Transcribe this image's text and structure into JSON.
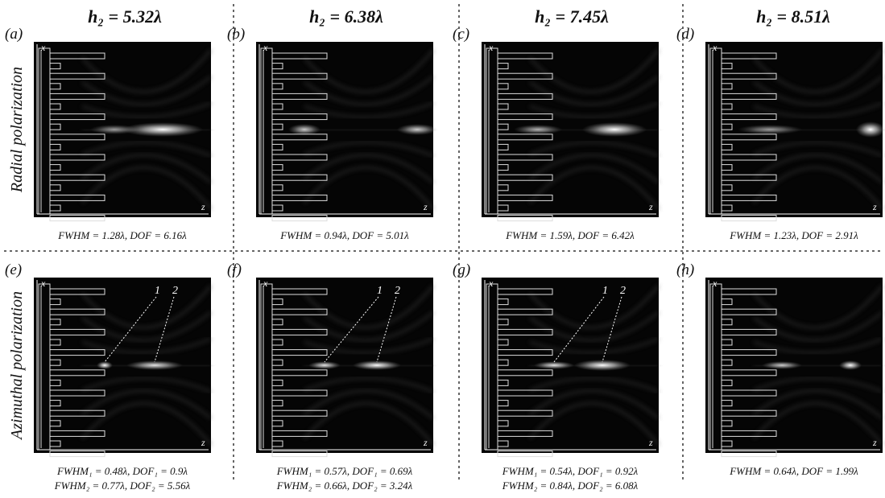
{
  "columns": [
    {
      "title": "h₂ = 5.32λ"
    },
    {
      "title": "h₂ = 6.38λ"
    },
    {
      "title": "h₂ = 7.45λ"
    },
    {
      "title": "h₂ = 8.51λ"
    }
  ],
  "rows": [
    {
      "label": "Radial polarization",
      "panels": [
        {
          "label": "(a)",
          "x_axis": "x",
          "z_axis": "z",
          "caption": [
            "FWHM = 1.28λ, DOF = 6.16λ"
          ]
        },
        {
          "label": "(b)",
          "x_axis": "x",
          "z_axis": "z",
          "caption": [
            "FWHM = 0.94λ, DOF = 5.01λ"
          ]
        },
        {
          "label": "(c)",
          "x_axis": "x",
          "z_axis": "z",
          "caption": [
            "FWHM = 1.59λ, DOF = 6.42λ"
          ]
        },
        {
          "label": "(d)",
          "x_axis": "x",
          "z_axis": "z",
          "caption": [
            "FWHM = 1.23λ, DOF = 2.91λ"
          ]
        }
      ]
    },
    {
      "label": "Azimuthal polarization",
      "panels": [
        {
          "label": "(e)",
          "x_axis": "x",
          "z_axis": "z",
          "annotations": [
            "1",
            "2"
          ],
          "caption": [
            "FWHM₁ = 0.48λ, DOF₁ = 0.9λ",
            "FWHM₂ = 0.77λ, DOF₂ = 5.56λ"
          ]
        },
        {
          "label": "(f)",
          "x_axis": "x",
          "z_axis": "z",
          "annotations": [
            "1",
            "2"
          ],
          "caption": [
            "FWHM₁ = 0.57λ, DOF₁ = 0.69λ",
            "FWHM₂ = 0.66λ, DOF₂ = 3.24λ"
          ]
        },
        {
          "label": "(g)",
          "x_axis": "x",
          "z_axis": "z",
          "annotations": [
            "1",
            "2"
          ],
          "caption": [
            "FWHM₁ = 0.54λ, DOF₁ = 0.92λ",
            "FWHM₂ = 0.84λ, DOF₂ = 6.08λ"
          ]
        },
        {
          "label": "(h)",
          "x_axis": "x",
          "z_axis": "z",
          "caption": [
            "FWHM = 0.64λ, DOF = 1.99λ"
          ]
        }
      ]
    }
  ]
}
